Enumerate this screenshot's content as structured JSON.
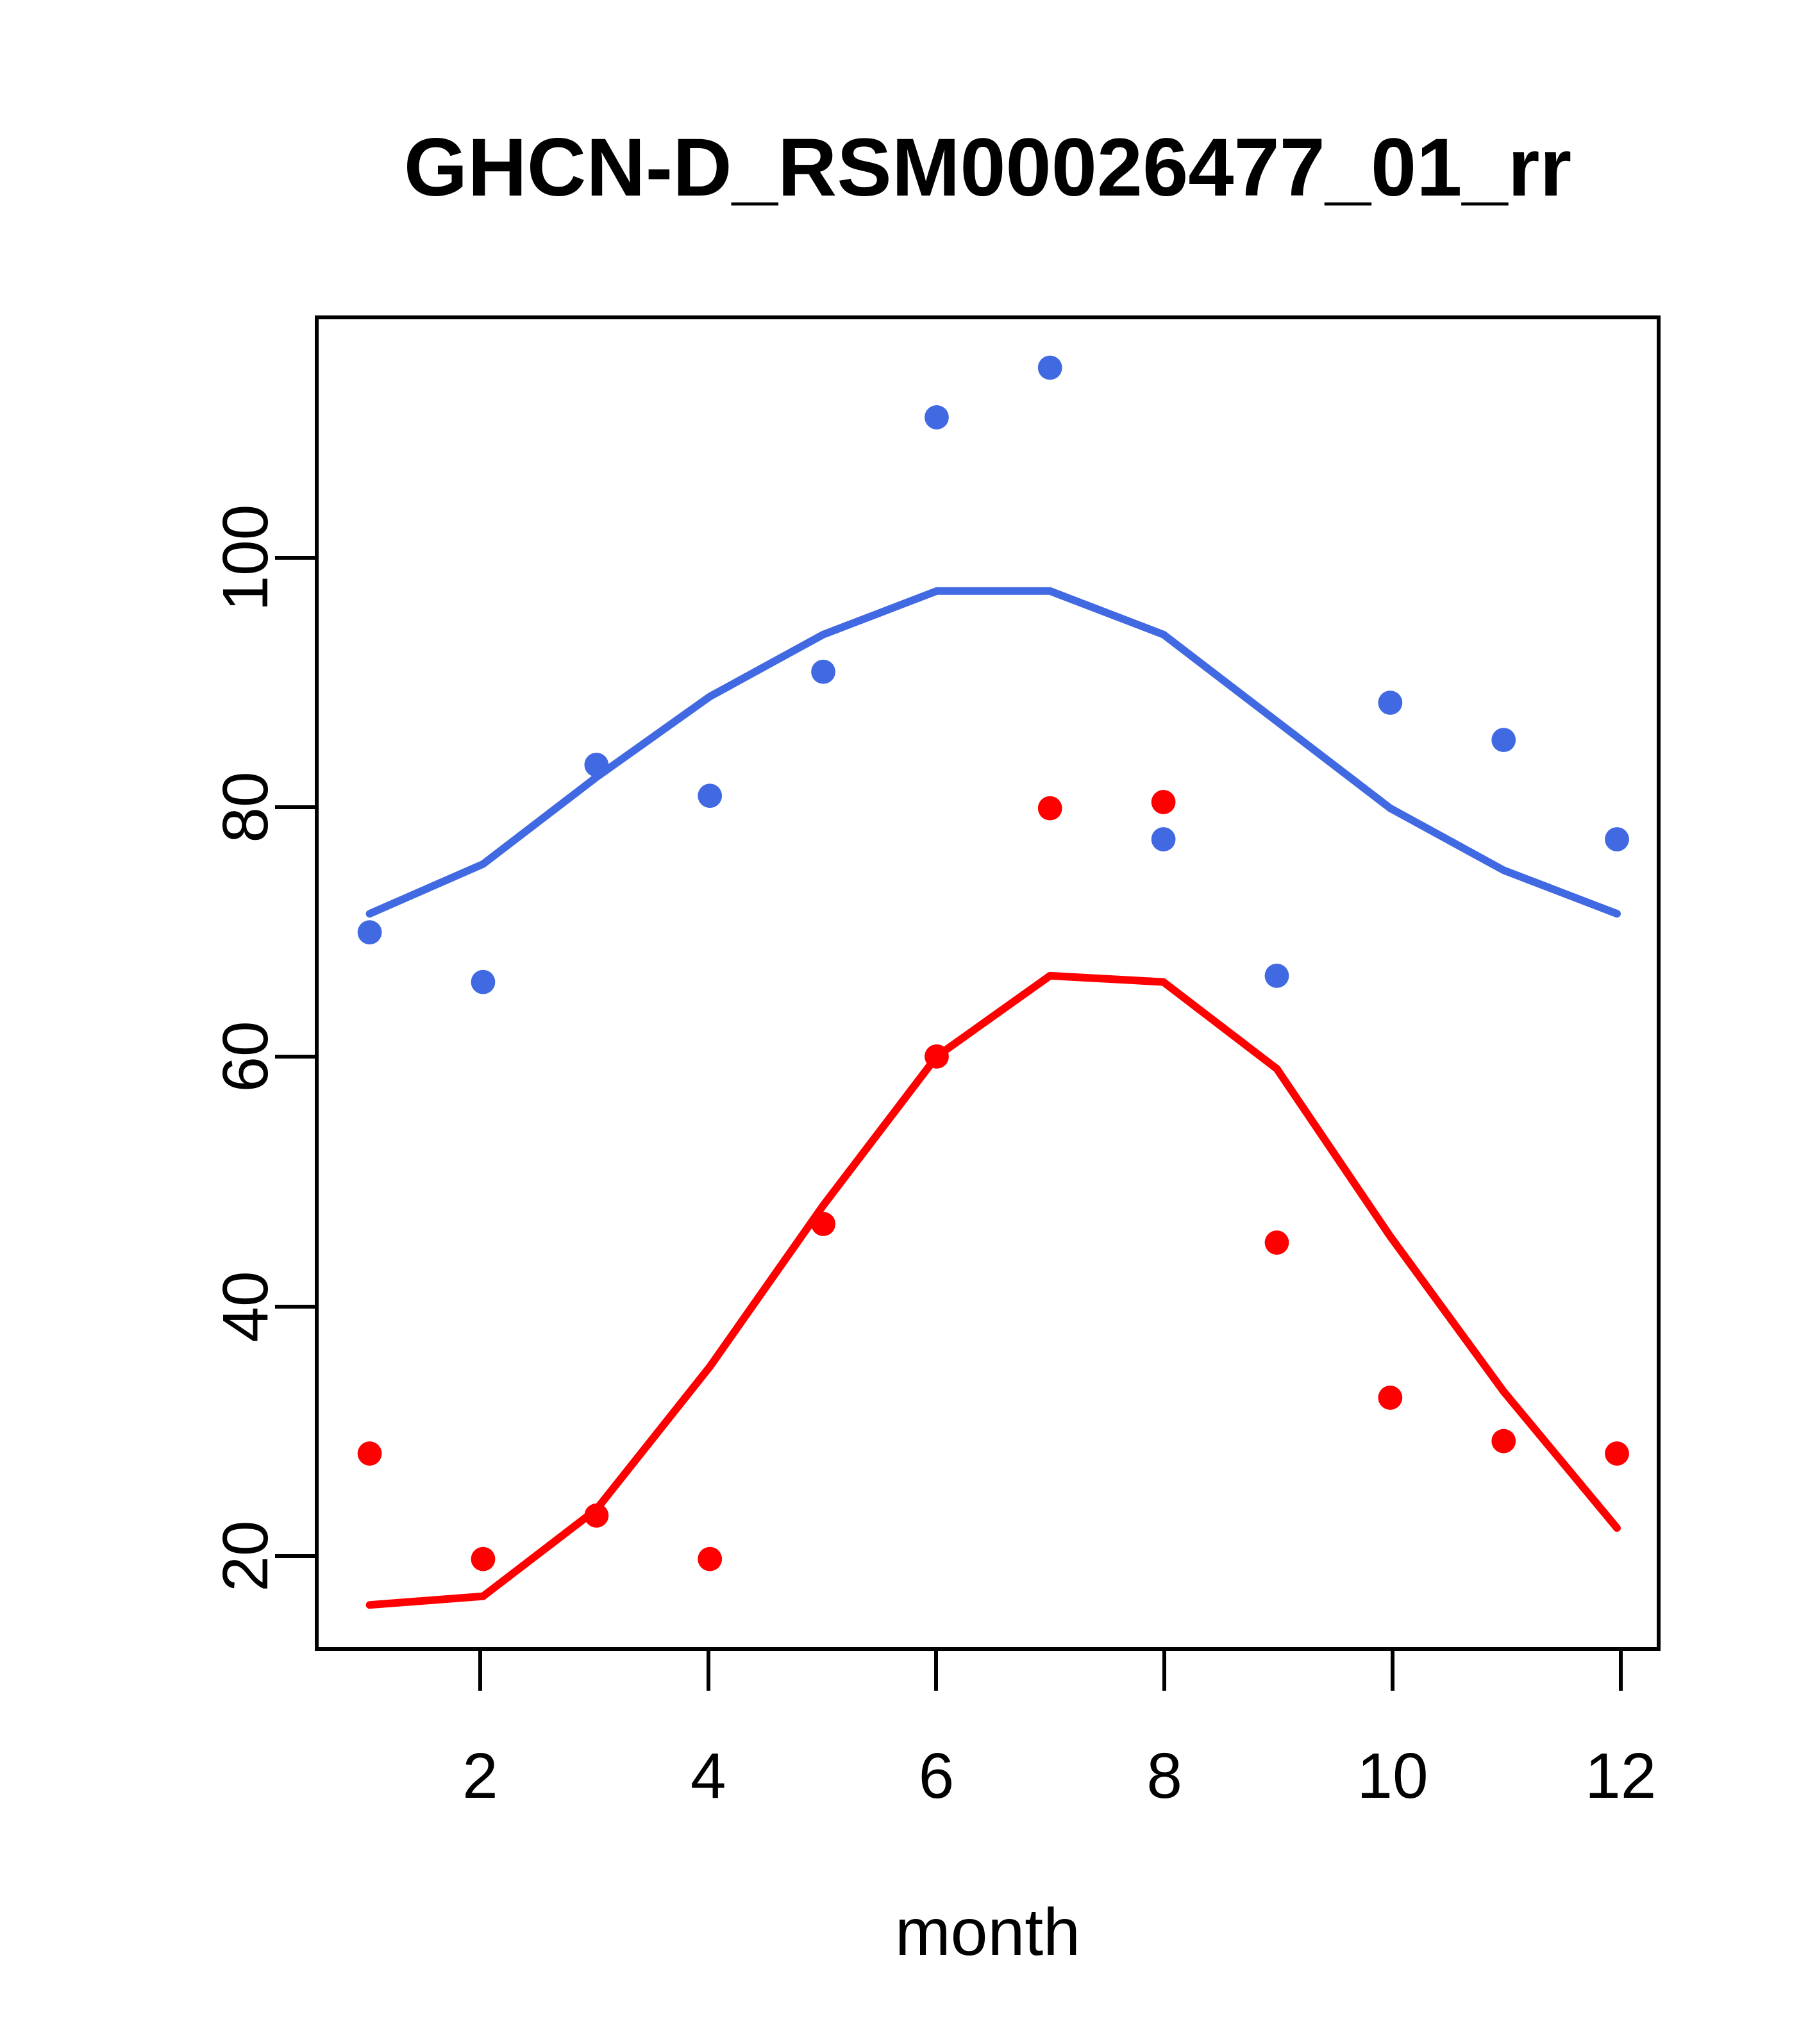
{
  "title": "GHCN-D_RSM00026477_01_rr",
  "colors": {
    "blue": "#4169E1",
    "red": "#FF0000",
    "axis": "#000000",
    "background": "#FFFFFF"
  },
  "chart_data": {
    "type": "line",
    "title": "GHCN-D_RSM00026477_01_rr",
    "xlabel": "month",
    "ylabel": "",
    "x": [
      1,
      2,
      3,
      4,
      5,
      6,
      7,
      8,
      9,
      10,
      11,
      12
    ],
    "x_ticks": [
      2,
      4,
      6,
      8,
      10,
      12
    ],
    "y_ticks": [
      20,
      40,
      60,
      80,
      100
    ],
    "xlim": [
      0.55,
      12.35
    ],
    "ylim": [
      12.4,
      119.4
    ],
    "grid": false,
    "legend": "none",
    "series": [
      {
        "name": "blue_points",
        "kind": "scatter",
        "color": "#4169E1",
        "values": [
          70,
          66,
          83.5,
          81,
          91,
          111.5,
          115.5,
          77.5,
          66.5,
          88.5,
          85.5,
          77.5
        ]
      },
      {
        "name": "blue_line",
        "kind": "line",
        "color": "#4169E1",
        "values": [
          71.5,
          75.5,
          82.5,
          89,
          94,
          97.5,
          97.5,
          94,
          87,
          80,
          75,
          71.5
        ]
      },
      {
        "name": "red_points",
        "kind": "scatter",
        "color": "#FF0000",
        "values": [
          28,
          19.5,
          23,
          19.5,
          46.5,
          60,
          80,
          80.5,
          45,
          32.5,
          29,
          28
        ]
      },
      {
        "name": "red_line",
        "kind": "line",
        "color": "#FF0000",
        "values": [
          15.8,
          16.5,
          23.5,
          35,
          48,
          60,
          66.5,
          66,
          59,
          45.5,
          33,
          22
        ]
      }
    ]
  }
}
